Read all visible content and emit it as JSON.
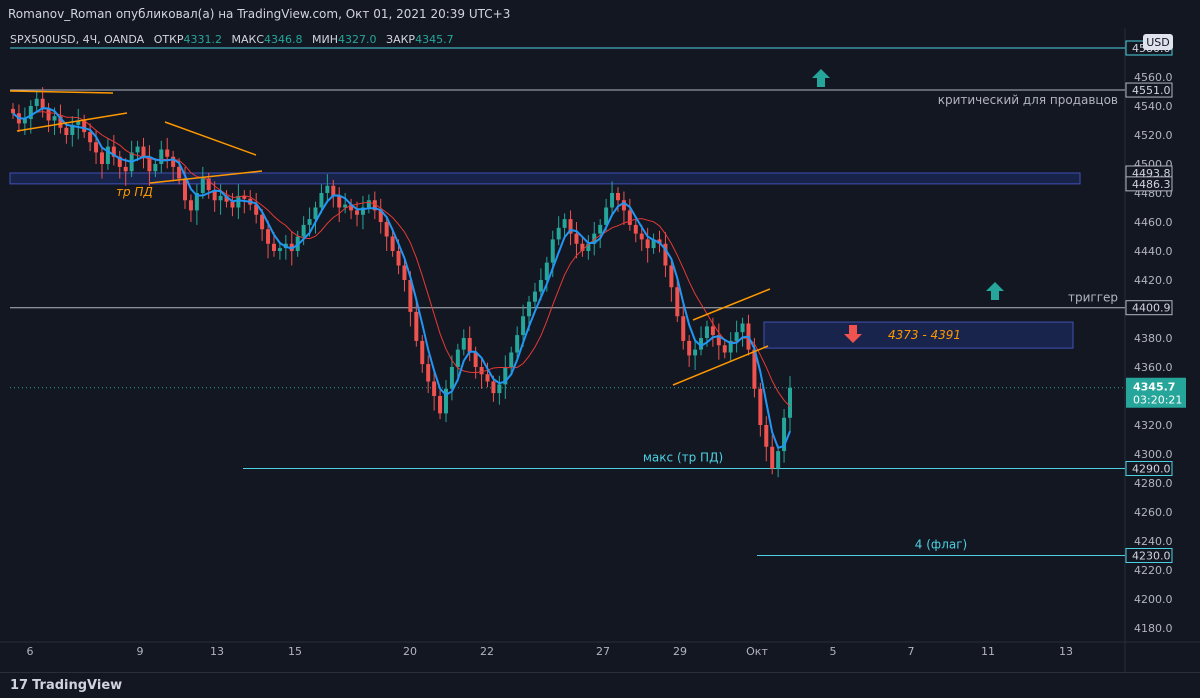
{
  "header": {
    "publish_line": "Romanov_Roman опубликовал(а) на TradingView.com, Окт 01, 2021 20:39 UTC+3"
  },
  "legend": {
    "symbol": "SPX500USD, 4Ч, OANDA",
    "open_label": "ОТКР",
    "open": "4331.2",
    "high_label": "МАКС",
    "high": "4346.8",
    "low_label": "МИН",
    "low": "4327.0",
    "close_label": "ЗАКР",
    "close": "4345.7"
  },
  "footer": {
    "brand": "TradingView"
  },
  "colors": {
    "background": "#131722",
    "up": "#26a69a",
    "down": "#ef5350",
    "ma_fast": "#2196f3",
    "ma_slow": "#e53935",
    "trendline": "#ff9800",
    "zone": "#1e2d6b",
    "level_line": "#b2b5be",
    "cyan_line": "#4dd0e1"
  },
  "chart_data": {
    "type": "candlestick",
    "currency": "USD",
    "ylim": [
      4170,
      4590
    ],
    "y_ticks": [
      4180,
      4200,
      4220,
      4240,
      4260,
      4280,
      4300,
      4320,
      4340,
      4360,
      4380,
      4400,
      4420,
      4440,
      4460,
      4480,
      4500,
      4520,
      4540,
      4560
    ],
    "x_tick_labels": [
      "6",
      "9",
      "13",
      "15",
      "20",
      "22",
      "27",
      "29",
      "Окт",
      "5",
      "7",
      "11",
      "13"
    ],
    "price_badges": [
      "4580.0",
      "4551.0",
      "4493.8",
      "4486.3",
      "4400.9",
      "4290.0",
      "4230.0"
    ],
    "last_price": "4345.7",
    "countdown": "03:20:21",
    "levels": [
      {
        "value": 4580.0,
        "label": ""
      },
      {
        "value": 4551.0,
        "label": "критический для продавцов"
      },
      {
        "value": 4400.9,
        "label": "триггер"
      },
      {
        "value": 4290.0,
        "label": "макс (тр ПД)"
      },
      {
        "value": 4230.0,
        "label": "4 (флаг)"
      }
    ],
    "zones": [
      {
        "from": 4486.3,
        "to": 4493.8,
        "label": "тр ПД"
      },
      {
        "from": 4373,
        "to": 4391,
        "label": "4373 - 4391"
      }
    ],
    "closes": [
      4535,
      4528,
      4531,
      4540,
      4545,
      4538,
      4530,
      4533,
      4525,
      4520,
      4527,
      4530,
      4522,
      4515,
      4508,
      4500,
      4512,
      4505,
      4498,
      4495,
      4508,
      4512,
      4505,
      4495,
      4500,
      4510,
      4505,
      4498,
      4490,
      4475,
      4468,
      4480,
      4490,
      4482,
      4475,
      4478,
      4474,
      4470,
      4478,
      4476,
      4472,
      4465,
      4455,
      4445,
      4440,
      4442,
      4445,
      4440,
      4450,
      4458,
      4462,
      4470,
      4480,
      4485,
      4478,
      4470,
      4472,
      4468,
      4465,
      4470,
      4475,
      4468,
      4460,
      4450,
      4440,
      4430,
      4420,
      4398,
      4378,
      4362,
      4350,
      4340,
      4328,
      4345,
      4360,
      4372,
      4380,
      4370,
      4360,
      4355,
      4350,
      4342,
      4348,
      4360,
      4370,
      4382,
      4395,
      4405,
      4412,
      4420,
      4432,
      4448,
      4456,
      4462,
      4452,
      4445,
      4440,
      4445,
      4452,
      4458,
      4470,
      4480,
      4475,
      4468,
      4458,
      4452,
      4448,
      4442,
      4448,
      4445,
      4430,
      4415,
      4395,
      4378,
      4368,
      4372,
      4380,
      4388,
      4382,
      4375,
      4370,
      4378,
      4384,
      4390,
      4372,
      4345,
      4320,
      4305,
      4290,
      4302,
      4325,
      4345.7
    ]
  }
}
